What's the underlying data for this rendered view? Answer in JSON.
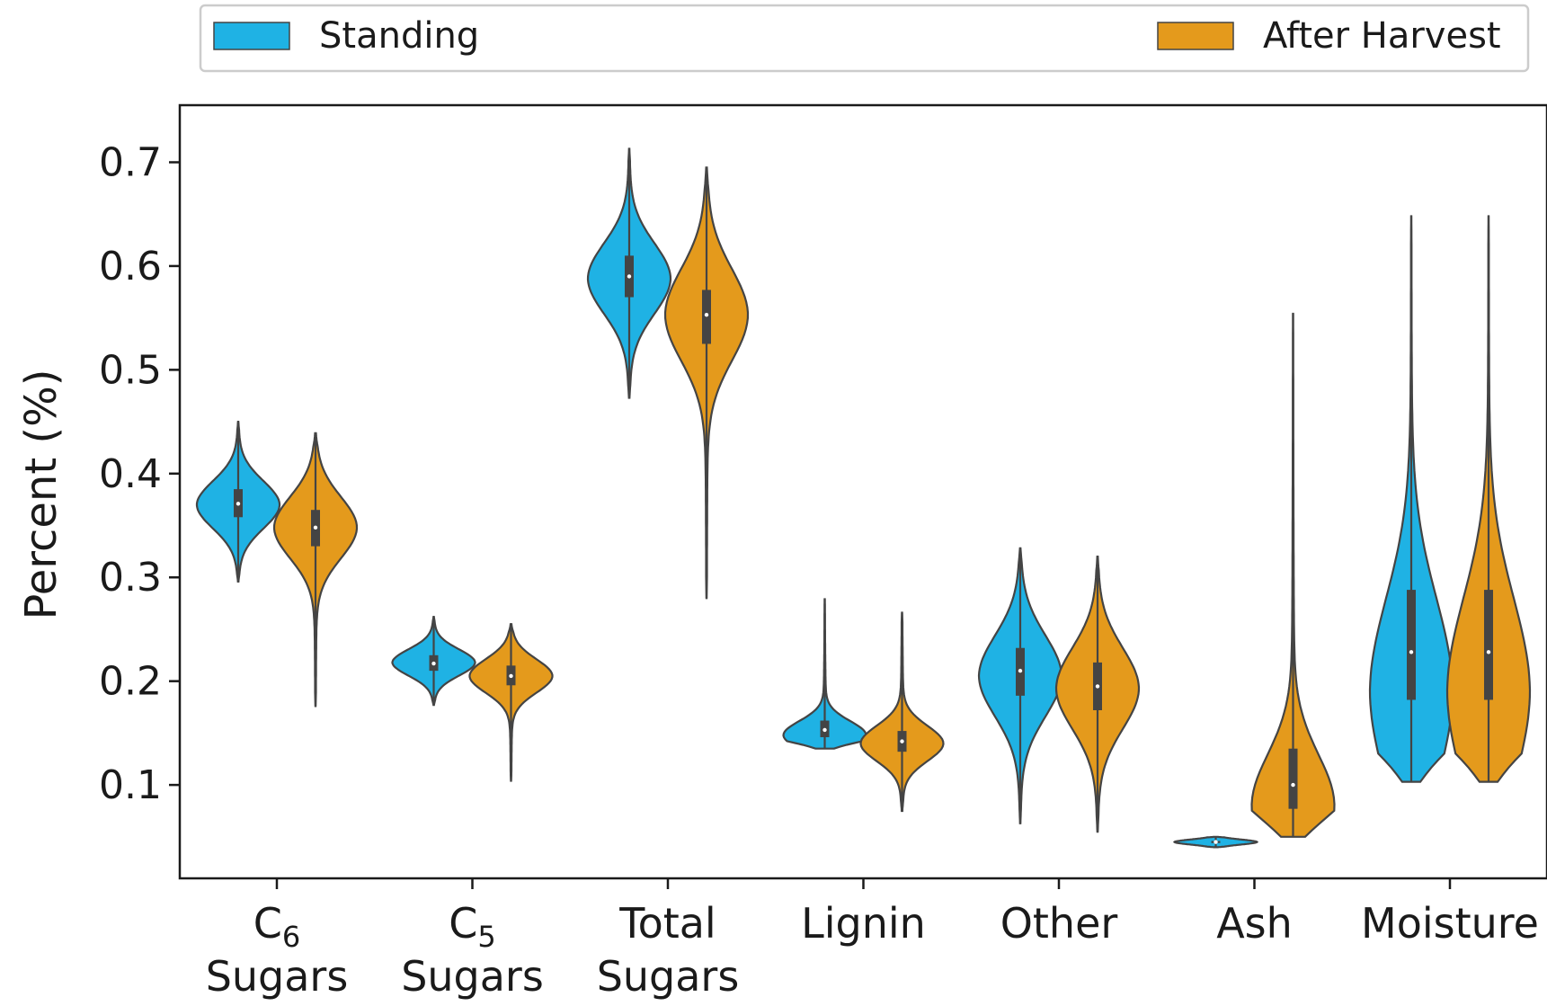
{
  "chart_data": {
    "type": "violin",
    "ylabel": "Percent (%)",
    "ylim": [
      0.01,
      0.755
    ],
    "yticks": [
      0.1,
      0.2,
      0.3,
      0.4,
      0.5,
      0.6,
      0.7
    ],
    "ytick_labels": [
      "0.1",
      "0.2",
      "0.3",
      "0.4",
      "0.5",
      "0.6",
      "0.7"
    ],
    "categories": [
      {
        "main": "C",
        "sub": "6",
        "line2": "Sugars"
      },
      {
        "main": "C",
        "sub": "5",
        "line2": "Sugars"
      },
      {
        "main": "Total",
        "sub": "",
        "line2": "Sugars"
      },
      {
        "main": "Lignin",
        "sub": "",
        "line2": ""
      },
      {
        "main": "Other",
        "sub": "",
        "line2": ""
      },
      {
        "main": "Ash",
        "sub": "",
        "line2": ""
      },
      {
        "main": "Moisture",
        "sub": "",
        "line2": ""
      }
    ],
    "legend": {
      "placement": "top"
    },
    "series": [
      {
        "name": "Standing",
        "color": "#1fb2e4",
        "violins": [
          {
            "min": 0.296,
            "q1": 0.358,
            "median": 0.371,
            "q3": 0.385,
            "max": 0.45,
            "center": 0.37
          },
          {
            "min": 0.177,
            "q1": 0.21,
            "median": 0.217,
            "q3": 0.225,
            "max": 0.262,
            "center": 0.218
          },
          {
            "min": 0.473,
            "q1": 0.57,
            "median": 0.59,
            "q3": 0.61,
            "max": 0.713,
            "center": 0.588
          },
          {
            "min": 0.135,
            "q1": 0.146,
            "median": 0.153,
            "q3": 0.162,
            "max": 0.279,
            "center": 0.148
          },
          {
            "min": 0.063,
            "q1": 0.186,
            "median": 0.21,
            "q3": 0.232,
            "max": 0.328,
            "center": 0.205
          },
          {
            "min": 0.04,
            "q1": 0.044,
            "median": 0.045,
            "q3": 0.046,
            "max": 0.05,
            "center": 0.045
          },
          {
            "min": 0.103,
            "q1": 0.182,
            "median": 0.228,
            "q3": 0.288,
            "max": 0.648,
            "center": 0.19
          }
        ]
      },
      {
        "name": "After Harvest",
        "color": "#e49a1c",
        "violins": [
          {
            "min": 0.176,
            "q1": 0.33,
            "median": 0.348,
            "q3": 0.365,
            "max": 0.439,
            "center": 0.348
          },
          {
            "min": 0.104,
            "q1": 0.196,
            "median": 0.205,
            "q3": 0.215,
            "max": 0.255,
            "center": 0.205
          },
          {
            "min": 0.28,
            "q1": 0.525,
            "median": 0.553,
            "q3": 0.577,
            "max": 0.695,
            "center": 0.553
          },
          {
            "min": 0.075,
            "q1": 0.132,
            "median": 0.142,
            "q3": 0.152,
            "max": 0.266,
            "center": 0.14
          },
          {
            "min": 0.055,
            "q1": 0.172,
            "median": 0.195,
            "q3": 0.218,
            "max": 0.32,
            "center": 0.193
          },
          {
            "min": 0.05,
            "q1": 0.077,
            "median": 0.1,
            "q3": 0.135,
            "max": 0.554,
            "center": 0.08
          },
          {
            "min": 0.103,
            "q1": 0.182,
            "median": 0.228,
            "q3": 0.288,
            "max": 0.648,
            "center": 0.19
          }
        ]
      }
    ]
  }
}
